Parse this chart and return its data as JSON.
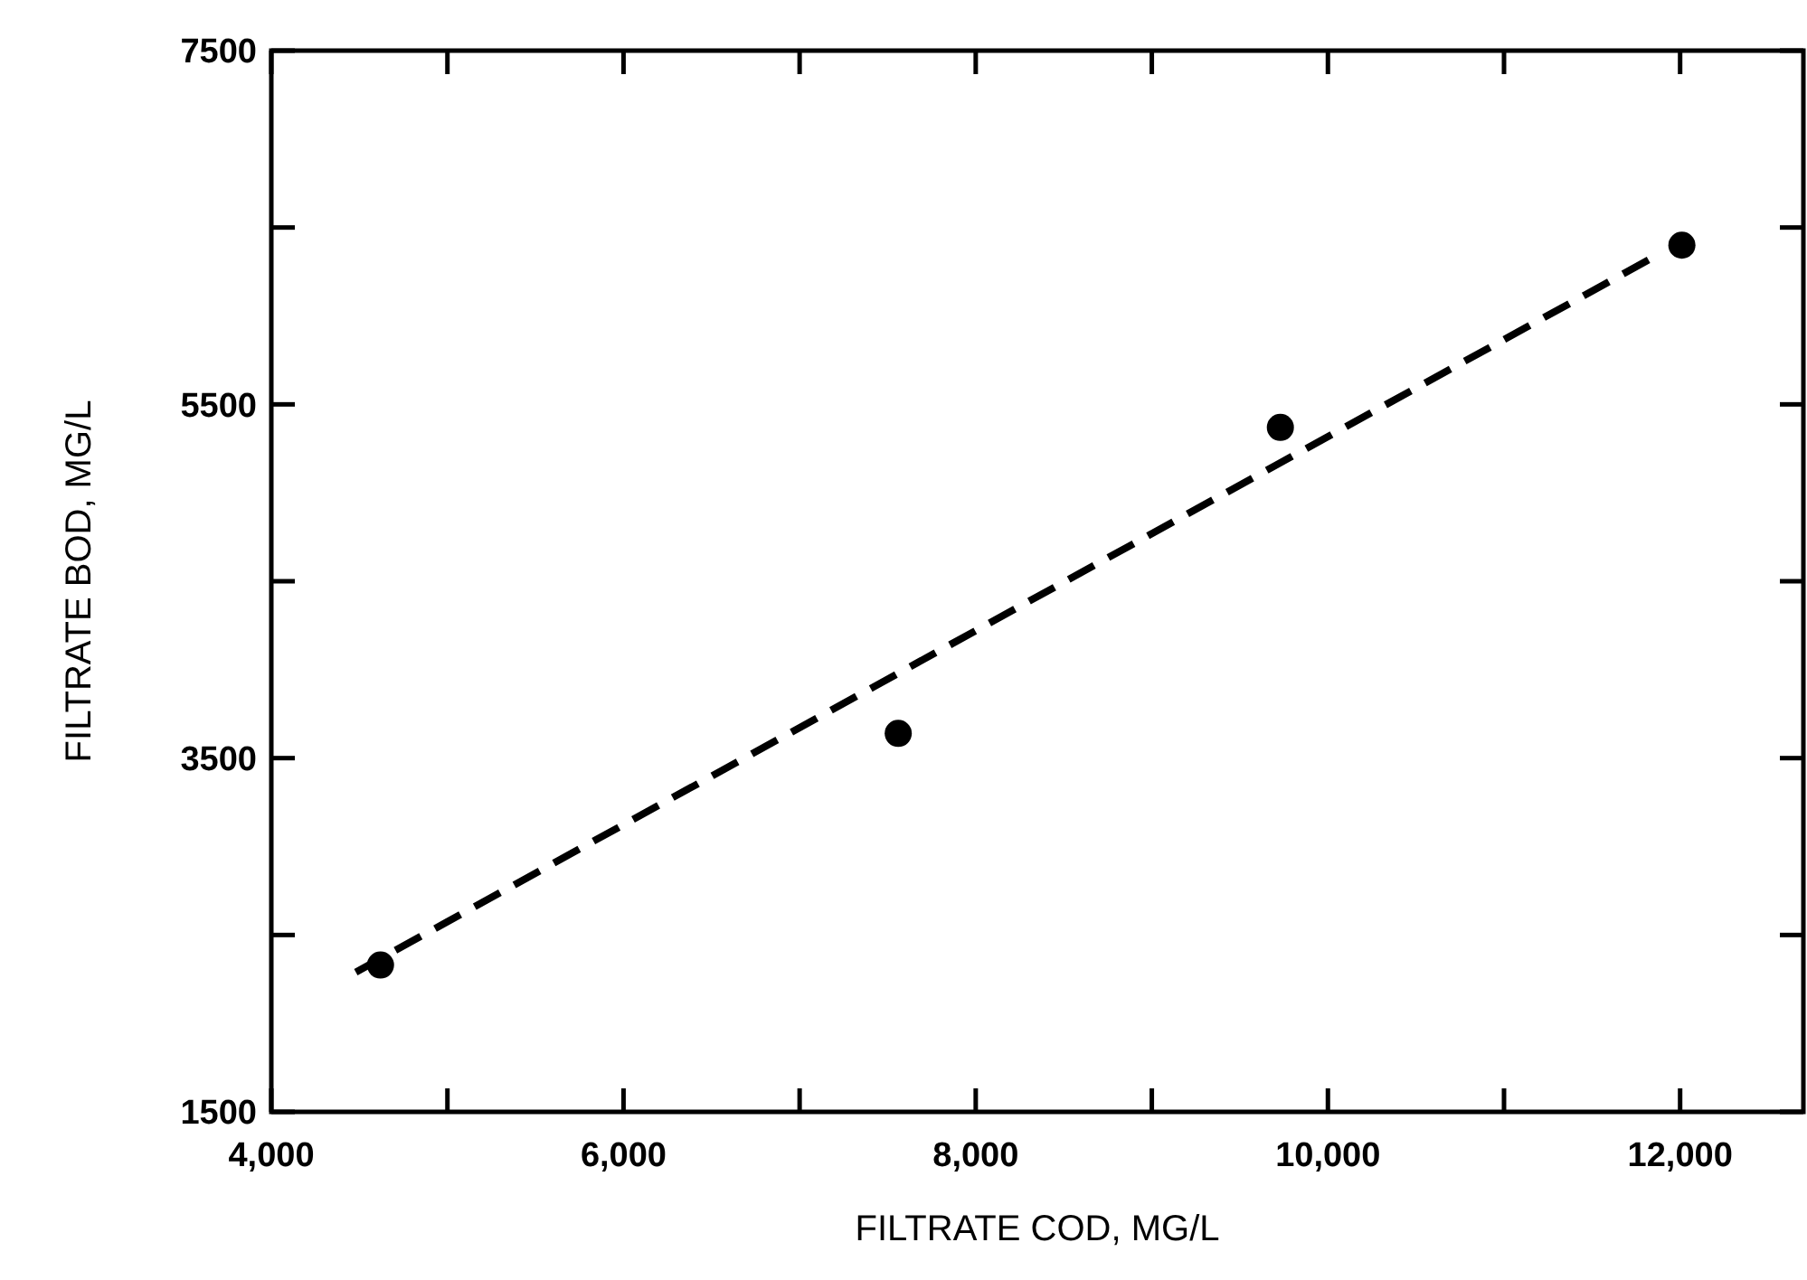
{
  "chart_data": {
    "type": "scatter",
    "xlabel": "FILTRATE COD, MG/L",
    "ylabel": "FILTRATE BOD, MG/L",
    "xlim": [
      4000,
      12700
    ],
    "ylim": [
      1500,
      7500
    ],
    "xticks": [
      {
        "value": 4000,
        "label": "4,000"
      },
      {
        "value": 5000,
        "label": null
      },
      {
        "value": 6000,
        "label": "6,000"
      },
      {
        "value": 7000,
        "label": null
      },
      {
        "value": 8000,
        "label": "8,000"
      },
      {
        "value": 9000,
        "label": null
      },
      {
        "value": 10000,
        "label": "10,000"
      },
      {
        "value": 11000,
        "label": null
      },
      {
        "value": 12000,
        "label": "12,000"
      }
    ],
    "yticks": [
      1500,
      {
        "value": 2500,
        "label": null
      },
      3500,
      {
        "value": 4500,
        "label": null
      },
      5500,
      {
        "value": 6500,
        "label": null
      },
      7500
    ],
    "grid": false,
    "series": [
      {
        "color": "#000000",
        "marker": "circle",
        "x": [
          4620,
          7560,
          9730,
          12010
        ],
        "values": [
          2330,
          3640,
          5370,
          6400
        ]
      },
      {
        "type": "line",
        "color": "#000000",
        "line_style": "dashed",
        "marker": "none",
        "x": [
          4480,
          11900
        ],
        "values": [
          2290,
          6360
        ]
      }
    ]
  }
}
